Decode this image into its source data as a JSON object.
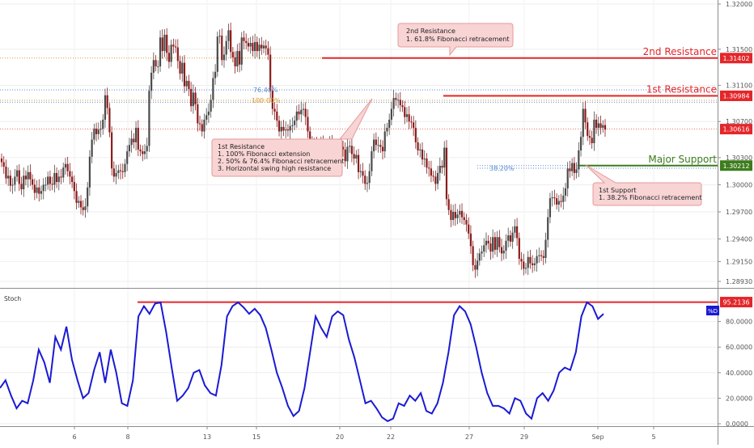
{
  "chart_data": [
    {
      "type": "candlestick",
      "name": "price",
      "y_ticks": [
        "1.32000",
        "1.31500",
        "1.31100",
        "1.30700",
        "1.30300",
        "1.30000",
        "1.29700",
        "1.29400",
        "1.29150",
        "1.28930"
      ],
      "y_tick_values": [
        1.32,
        1.315,
        1.311,
        1.307,
        1.303,
        1.3,
        1.297,
        1.294,
        1.2915,
        1.2893
      ],
      "x_ticks": [
        "6",
        "8",
        "13",
        "15",
        "20",
        "22",
        "27",
        "29",
        "Sep",
        "5"
      ],
      "close": [
        1.3025,
        1.302,
        1.3007,
        1.301,
        1.2999,
        1.3,
        1.3009,
        1.3016,
        1.3001,
        1.2995,
        1.301,
        1.3006,
        1.3014,
        1.3006,
        1.3,
        1.2991,
        1.2997,
        1.299,
        1.2993,
        1.3,
        1.3,
        1.3009,
        1.3001,
        1.3,
        1.3013,
        1.3003,
        1.3009,
        1.3008,
        1.3019,
        1.3023,
        1.3015,
        1.3009,
        1.3003,
        1.2993,
        1.298,
        1.2982,
        1.2975,
        1.2972,
        1.2976,
        1.2997,
        1.3031,
        1.305,
        1.3062,
        1.3056,
        1.3061,
        1.3062,
        1.3072,
        1.3099,
        1.3085,
        1.3058,
        1.3018,
        1.3009,
        1.3013,
        1.3016,
        1.3015,
        1.3014,
        1.3023,
        1.3037,
        1.3044,
        1.3051,
        1.3047,
        1.3063,
        1.3039,
        1.3037,
        1.3034,
        1.3037,
        1.3043,
        1.3104,
        1.3124,
        1.3138,
        1.3131,
        1.3131,
        1.3163,
        1.3148,
        1.3166,
        1.3146,
        1.3136,
        1.3155,
        1.3153,
        1.3152,
        1.3137,
        1.3123,
        1.3135,
        1.3109,
        1.3115,
        1.3106,
        1.3087,
        1.3102,
        1.3089,
        1.3068,
        1.3067,
        1.3059,
        1.3072,
        1.3077,
        1.3081,
        1.3094,
        1.3118,
        1.3125,
        1.3164,
        1.3165,
        1.3138,
        1.3144,
        1.3159,
        1.3171,
        1.3147,
        1.3141,
        1.3131,
        1.3148,
        1.3133,
        1.3163,
        1.3159,
        1.3157,
        1.3153,
        1.3157,
        1.3148,
        1.3158,
        1.3148,
        1.3155,
        1.3151,
        1.3154,
        1.3151,
        1.3144,
        1.3104,
        1.3084,
        1.3081,
        1.3071,
        1.3059,
        1.3064,
        1.306,
        1.3061,
        1.306,
        1.3065,
        1.3066,
        1.3071,
        1.3081,
        1.3078,
        1.3083,
        1.3084,
        1.3075,
        1.3059,
        1.3047,
        1.3043,
        1.3044,
        1.3038,
        1.3039,
        1.3046,
        1.3035,
        1.3036,
        1.3044,
        1.3046,
        1.3038,
        1.3039,
        1.304,
        1.3036,
        1.3042,
        1.3039,
        1.3026,
        1.3042,
        1.3043,
        1.3034,
        1.3029,
        1.3033,
        1.3014,
        1.3015,
        1.301,
        1.3001,
        1.3002,
        1.3015,
        1.3037,
        1.305,
        1.3044,
        1.3044,
        1.3042,
        1.3037,
        1.3059,
        1.3063,
        1.3072,
        1.3084,
        1.3096,
        1.3094,
        1.3094,
        1.3088,
        1.3086,
        1.3075,
        1.3078,
        1.307,
        1.3069,
        1.3063,
        1.3047,
        1.3038,
        1.3039,
        1.3028,
        1.3029,
        1.3019,
        1.3018,
        1.301,
        1.3009,
        1.3001,
        1.3013,
        1.3021,
        1.3019,
        1.3041,
        1.2984,
        1.2972,
        1.2961,
        1.297,
        1.2963,
        1.2967,
        1.2971,
        1.2964,
        1.2961,
        1.2956,
        1.2946,
        1.2932,
        1.2911,
        1.2906,
        1.2916,
        1.2924,
        1.2926,
        1.2933,
        1.2938,
        1.2935,
        1.2926,
        1.2942,
        1.2928,
        1.2942,
        1.2931,
        1.2924,
        1.2927,
        1.2938,
        1.2944,
        1.2937,
        1.2947,
        1.2954,
        1.2941,
        1.2918,
        1.2915,
        1.2907,
        1.2908,
        1.292,
        1.2913,
        1.2911,
        1.2913,
        1.2921,
        1.2922,
        1.2921,
        1.2919,
        1.2939,
        1.2964,
        1.2985,
        1.2986,
        1.2985,
        1.2978,
        1.2982,
        1.2981,
        1.2988,
        1.2996,
        1.3018,
        1.3015,
        1.3024,
        1.3013,
        1.3017,
        1.3038,
        1.3053,
        1.3084,
        1.3069,
        1.3054,
        1.3052,
        1.3046,
        1.3072,
        1.3063,
        1.3068,
        1.3063,
        1.3066,
        1.3061
      ],
      "resistance_2": 1.31402,
      "resistance_1": 1.30984,
      "major_support": 1.30212,
      "current_price": 1.30616,
      "fib_levels": [
        {
          "label": "76.40%",
          "value": 1.3105
        },
        {
          "label": "100.00%",
          "value": 1.30935
        },
        {
          "label": "38.20%",
          "value": 1.30183
        }
      ],
      "level_labels": {
        "resistance_2": "2nd Resistance",
        "resistance_1": "1st Resistance",
        "major_support": "Major Support"
      }
    },
    {
      "type": "line",
      "name": "stoch",
      "title": "Stoch",
      "y_ticks": [
        "80.0000",
        "60.0000",
        "40.0000",
        "20.0000",
        "0.0000"
      ],
      "y_tick_values": [
        80,
        60,
        40,
        20,
        0
      ],
      "series": [
        {
          "name": "%D",
          "values": [
            28,
            34,
            22,
            12,
            18,
            16,
            34,
            58,
            48,
            32,
            68,
            58,
            76,
            50,
            34,
            20,
            24,
            42,
            56,
            32,
            58,
            40,
            16,
            14,
            34,
            84,
            92,
            86,
            94,
            95,
            72,
            44,
            18,
            22,
            28,
            40,
            42,
            30,
            24,
            22,
            46,
            84,
            92,
            95,
            91,
            86,
            90,
            85,
            75,
            58,
            40,
            28,
            14,
            6,
            10,
            28,
            56,
            84,
            75,
            68,
            84,
            88,
            85,
            66,
            52,
            34,
            16,
            18,
            12,
            5,
            2,
            4,
            16,
            14,
            22,
            18,
            24,
            10,
            8,
            16,
            32,
            56,
            85,
            92,
            88,
            78,
            60,
            40,
            24,
            14,
            14,
            12,
            8,
            20,
            18,
            8,
            4,
            20,
            24,
            18,
            26,
            40,
            44,
            42,
            56,
            84,
            95,
            92,
            82,
            86
          ]
        }
      ],
      "ref_level": 95.2136,
      "ylim": [
        0,
        100
      ]
    }
  ],
  "price_panel": {
    "current_price_label": "1.30616",
    "resistance_2_label": "1.31402",
    "resistance_1_label": "1.30984",
    "major_support_label": "1.30212",
    "fib_76_label": "76.40%",
    "fib_100_label": "100.00%",
    "fib_38_label": "38.20%",
    "annotations": {
      "resistance_2": [
        "2nd Resistance",
        "1. 61.8% Fibonacci retracement"
      ],
      "resistance_1": [
        "1st Resistance",
        "1. 100% Fibonacci extension",
        "2. 50% & 76.4% Fibonacci retracement",
        "3. Horizontal swing high resistance"
      ],
      "support_1": [
        "1st Support",
        "1. 38.2% Fibonacci retracement"
      ]
    }
  },
  "stoch_panel": {
    "title": "Stoch",
    "legend_label": "%D",
    "value_label": "95.2136"
  },
  "colors": {
    "up": "#4a4a4a",
    "down": "#8b1c1c",
    "resistance": "#e3262a",
    "support": "#3e7c1d",
    "stoch_line": "#1a1ad4",
    "fib_blue": "#5b8bd4",
    "fib_orange": "#d99a2b",
    "callout_fill": "#f8d4d4",
    "callout_stroke": "#e49a9a"
  }
}
